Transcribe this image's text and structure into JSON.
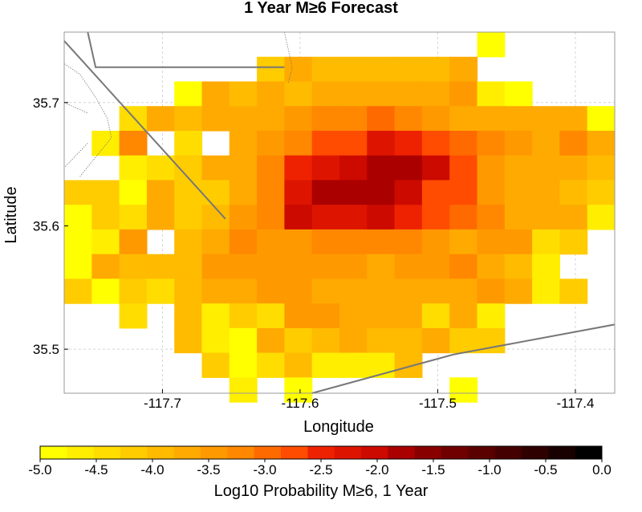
{
  "chart_data": {
    "type": "heatmap",
    "title": "1 Year M≥6 Forecast",
    "xlabel": "Longitude",
    "ylabel": "Latitude",
    "x_ticks": [
      "-117.7",
      "-117.6",
      "-117.5",
      "-117.4"
    ],
    "x_tick_values": [
      -117.7,
      -117.6,
      -117.5,
      -117.4
    ],
    "y_ticks": [
      "35.5",
      "35.6",
      "35.7"
    ],
    "y_tick_values": [
      35.5,
      35.6,
      35.7
    ],
    "xlim": [
      -117.7714,
      -117.3714
    ],
    "ylim": [
      35.4643,
      35.7571
    ],
    "grid": true,
    "colorbar": {
      "label": "Log10 Probability M≥6, 1 Year",
      "ticks": [
        "-5.0",
        "-4.5",
        "-4.0",
        "-3.5",
        "-3.0",
        "-2.5",
        "-2.0",
        "-1.5",
        "-1.0",
        "-0.5",
        "0.0"
      ],
      "range": [
        -5.0,
        0.0
      ],
      "colors": [
        "#ffff00",
        "#ffee00",
        "#ffdd00",
        "#ffcc00",
        "#ffbb00",
        "#ffaa00",
        "#ff9900",
        "#ff8800",
        "#ff6a00",
        "#ff4c00",
        "#ee2200",
        "#dd1500",
        "#cc0a00",
        "#aa0000",
        "#880000",
        "#700000",
        "#5a0000",
        "#440000",
        "#2e0000",
        "#180000",
        "#000000"
      ]
    },
    "grid_spec": {
      "lon_start": -117.7714,
      "lat_top": 35.7571,
      "cell_deg": 0.02,
      "ncols": 20,
      "nrows": 15
    },
    "cells": [
      "...............z....",
      ".......pgjhjhjf.....",
      "....zdjfhgfeddbtx...",
      "..sfhgfdcaa89bfdgfdz",
      ".ta.r.db9764568abeaf",
      "..vrpfd95432136cdfgh",
      "nnxfpnda4222367bdehn",
      "zprenhca34435789dfgv",
      "ywbihdabb999abdbcsn.",
      "xfhjhcbbcccdbbagjt..",
      "nzlrjffcbdfddfgcgtn.",
      "..s.jvmqbcdfgrgt....",
      "....jvxfpjejhgnl....",
      ".....mxqkwuwk.......",
      "......t.x.....z....."
    ],
    "cell_legend": {
      "z": -4.93,
      "y": -4.86,
      "x": -4.8,
      "w": -4.73,
      "v": -4.66,
      "u": -4.6,
      "t": -4.53,
      "s": -4.46,
      "r": -4.4,
      "q": -4.33,
      "p": -4.26,
      "n": -4.2,
      "m": -4.13,
      "l": -4.06,
      "k": -4.0,
      "j": -3.93,
      "h": -3.86,
      "g": -3.8,
      "f": -3.73,
      "e": -3.66,
      "d": -3.6,
      "c": -3.5,
      "b": -3.4,
      "a": -3.3,
      "9": -3.15,
      "8": -3.0,
      "7": -2.85,
      "6": -2.7,
      "5": -2.5,
      "4": -2.3,
      "3": -2.1,
      "2": -1.9,
      "1": -1.75
    },
    "fault_lines": [
      [
        [
          -117.7543,
          35.7571
        ],
        [
          -117.7486,
          35.7286
        ],
        [
          -117.6114,
          35.7286
        ]
      ],
      [
        [
          -117.7714,
          35.75
        ],
        [
          -117.6543,
          35.6057
        ]
      ],
      [
        [
          -117.5914,
          35.4643
        ],
        [
          -117.4886,
          35.4957
        ],
        [
          -117.3714,
          35.52
        ]
      ]
    ],
    "boundary_lines": [
      [
        [
          -117.6114,
          35.7571
        ],
        [
          -117.6057,
          35.7286
        ],
        [
          -117.6086,
          35.7157
        ]
      ],
      [
        [
          -117.7714,
          35.7314
        ],
        [
          -117.76,
          35.7229
        ],
        [
          -117.7486,
          35.7043
        ],
        [
          -117.74,
          35.6871
        ],
        [
          -117.7371,
          35.6714
        ],
        [
          -117.76,
          35.64
        ]
      ],
      [
        [
          -117.7714,
          35.7
        ],
        [
          -117.7543,
          35.6914
        ]
      ],
      [
        [
          -117.7543,
          35.6671
        ],
        [
          -117.7714,
          35.6471
        ]
      ]
    ]
  }
}
